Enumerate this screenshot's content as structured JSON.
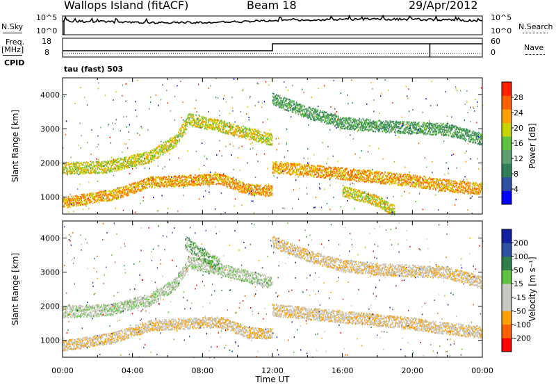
{
  "header": {
    "site": "Wallops Island (fitACF)",
    "beam": "Beam 18",
    "date": "29/Apr/2012"
  },
  "noise_panel": {
    "left_label": "N.Sky",
    "right_label": "N.Search",
    "left_ticks": [
      "10^5",
      "10^0"
    ],
    "right_ticks": [
      "10^5",
      "10^0"
    ]
  },
  "freq_panel": {
    "left_label_line1": "Freq.",
    "left_label_line2": "[MHz]",
    "right_label": "Nave",
    "left_ticks": [
      "18",
      "8"
    ],
    "right_ticks": [
      "60",
      "0"
    ],
    "cpid_label": "CPID",
    "cpid_text": "tau (fast) 503"
  },
  "colors": {
    "power_scale": [
      "#0000ff",
      "#2d4fa0",
      "#2f7f5a",
      "#5f9f6f",
      "#60c040",
      "#c8d400",
      "#ffa000",
      "#ff6000",
      "#ff2000"
    ],
    "velocity_scale": [
      "#ff0000",
      "#ff6000",
      "#ffa000",
      "#c8c8c0",
      "#c8c8c0",
      "#60c040",
      "#2f7f4a",
      "#2d4fa0",
      "#1020a0"
    ]
  },
  "chart_data": [
    {
      "type": "heatmap",
      "panel": "power",
      "ylabel": "Slant Range [km]",
      "colorbar_label": "Power [dB]",
      "colorbar_ticks": [
        "28",
        "24",
        "20",
        "16",
        "12",
        "8",
        "4"
      ],
      "yticks": [
        "4000",
        "3000",
        "2000",
        "1000"
      ],
      "ylim": [
        500,
        4500
      ],
      "xlim": [
        0,
        24
      ],
      "bands": [
        {
          "t": [
            0,
            3,
            5,
            7,
            9,
            10.5,
            12
          ],
          "r": [
            850,
            1100,
            1450,
            1500,
            1550,
            1250,
            1200
          ],
          "w": 200,
          "level": 6
        },
        {
          "t": [
            0,
            2.5,
            5,
            6.5,
            7.2,
            9,
            12
          ],
          "r": [
            1850,
            1900,
            2200,
            2700,
            3300,
            3100,
            2700
          ],
          "w": 220,
          "level": 5
        },
        {
          "t": [
            12,
            14,
            16,
            18,
            20,
            22,
            24
          ],
          "r": [
            1900,
            1800,
            1700,
            1600,
            1500,
            1350,
            1250
          ],
          "w": 220,
          "level": 6
        },
        {
          "t": [
            12,
            14,
            16,
            18,
            20,
            22,
            24
          ],
          "r": [
            3900,
            3500,
            3200,
            3100,
            3050,
            3000,
            2700
          ],
          "w": 220,
          "level": 3
        },
        {
          "t": [
            16,
            18,
            19
          ],
          "r": [
            1200,
            900,
            600
          ],
          "w": 200,
          "level": 5
        }
      ]
    },
    {
      "type": "heatmap",
      "panel": "velocity",
      "ylabel": "Slant Range [km]",
      "colorbar_label": "Velocity [m s⁻¹]",
      "colorbar_ticks": [
        "200",
        "100",
        "50",
        "15",
        "-15",
        "-50",
        "-100",
        "-200"
      ],
      "yticks": [
        "4000",
        "3000",
        "2000",
        "1000"
      ],
      "ylim": [
        500,
        4500
      ],
      "xlim": [
        0,
        24
      ],
      "xticks": [
        "00:00",
        "04:00",
        "08:00",
        "12:00",
        "16:00",
        "20:00",
        "00:00"
      ],
      "xlabel": "Time UT",
      "bands": [
        {
          "t": [
            0,
            3,
            5,
            7,
            9,
            10.5,
            12
          ],
          "r": [
            850,
            1100,
            1450,
            1500,
            1550,
            1250,
            1200
          ],
          "w": 200,
          "level": 3
        },
        {
          "t": [
            0,
            2.5,
            5,
            6.5,
            7.2,
            9,
            12
          ],
          "r": [
            1850,
            1900,
            2200,
            2700,
            3300,
            3100,
            2700
          ],
          "w": 220,
          "level": 4
        },
        {
          "t": [
            12,
            14,
            16,
            18,
            20,
            22,
            24
          ],
          "r": [
            1900,
            1800,
            1700,
            1600,
            1500,
            1350,
            1250
          ],
          "w": 220,
          "level": 3
        },
        {
          "t": [
            12,
            14,
            16,
            18,
            20,
            22,
            24
          ],
          "r": [
            3900,
            3500,
            3200,
            3100,
            3050,
            3000,
            2700
          ],
          "w": 220,
          "level": 3
        },
        {
          "t": [
            7,
            8,
            9
          ],
          "r": [
            3900,
            3500,
            3200
          ],
          "w": 250,
          "level": 5
        }
      ]
    }
  ]
}
